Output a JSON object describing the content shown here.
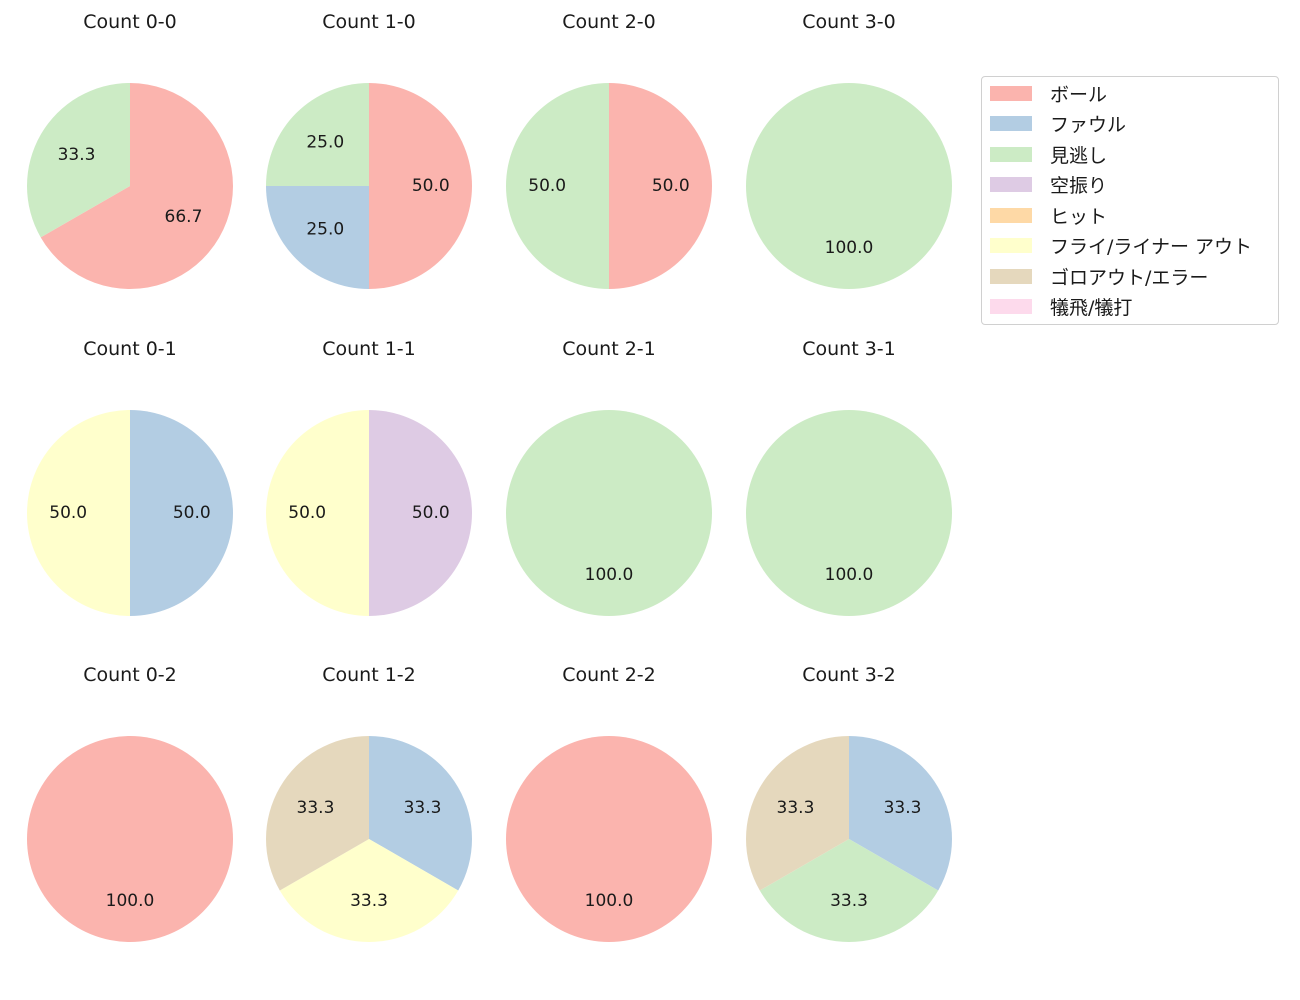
{
  "chart_data": {
    "type": "pie",
    "layout": {
      "rows": 3,
      "cols": 4,
      "legend_position": "upper right"
    },
    "categories": [
      "ボール",
      "ファウル",
      "見逃し",
      "空振り",
      "ヒット",
      "フライ/ライナー アウト",
      "ゴロアウト/エラー",
      "犠飛/犠打"
    ],
    "colors": [
      "#fbb4ae",
      "#b3cde3",
      "#ccebc5",
      "#decbe4",
      "#fed9a6",
      "#ffffcc",
      "#e5d8bd",
      "#fddaec"
    ],
    "charts": [
      {
        "title": "Count 0-0",
        "values": {
          "ボール": 66.7,
          "見逃し": 33.3
        }
      },
      {
        "title": "Count 1-0",
        "values": {
          "ボール": 50.0,
          "ファウル": 25.0,
          "見逃し": 25.0
        }
      },
      {
        "title": "Count 2-0",
        "values": {
          "ボール": 50.0,
          "見逃し": 50.0
        }
      },
      {
        "title": "Count 3-0",
        "values": {
          "見逃し": 100.0
        }
      },
      {
        "title": "Count 0-1",
        "values": {
          "ファウル": 50.0,
          "フライ/ライナー アウト": 50.0
        }
      },
      {
        "title": "Count 1-1",
        "values": {
          "空振り": 50.0,
          "フライ/ライナー アウト": 50.0
        }
      },
      {
        "title": "Count 2-1",
        "values": {
          "見逃し": 100.0
        }
      },
      {
        "title": "Count 3-1",
        "values": {
          "見逃し": 100.0
        }
      },
      {
        "title": "Count 0-2",
        "values": {
          "ボール": 100.0
        }
      },
      {
        "title": "Count 1-2",
        "values": {
          "ファウル": 33.3,
          "フライ/ライナー アウト": 33.3,
          "ゴロアウト/エラー": 33.3
        }
      },
      {
        "title": "Count 2-2",
        "values": {
          "ボール": 100.0
        }
      },
      {
        "title": "Count 3-2",
        "values": {
          "ファウル": 33.3,
          "見逃し": 33.3,
          "ゴロアウト/エラー": 33.3
        }
      }
    ]
  },
  "legend": {
    "items": [
      {
        "label": "ボール",
        "color": "#fbb4ae"
      },
      {
        "label": "ファウル",
        "color": "#b3cde3"
      },
      {
        "label": "見逃し",
        "color": "#ccebc5"
      },
      {
        "label": "空振り",
        "color": "#decbe4"
      },
      {
        "label": "ヒット",
        "color": "#fed9a6"
      },
      {
        "label": "フライ/ライナー アウト",
        "color": "#ffffcc"
      },
      {
        "label": "ゴロアウト/エラー",
        "color": "#e5d8bd"
      },
      {
        "label": "犠飛/犠打",
        "color": "#fddaec"
      }
    ]
  }
}
